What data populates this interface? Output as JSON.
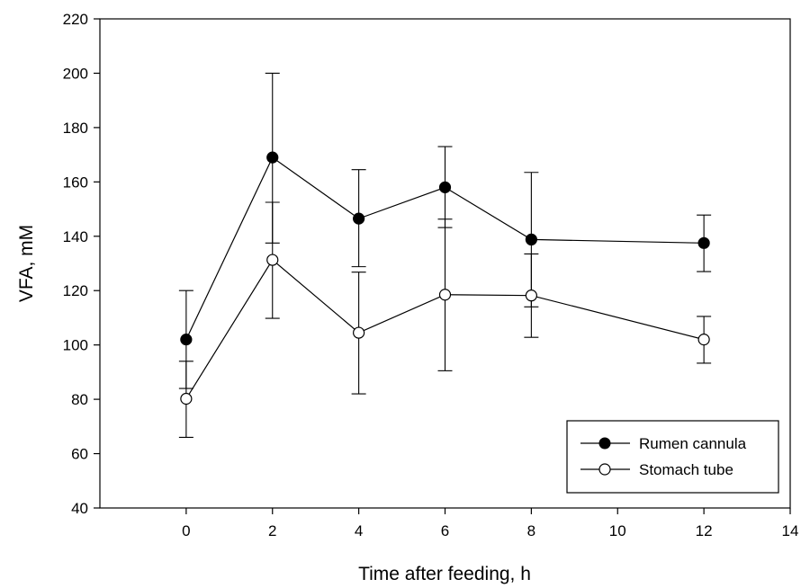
{
  "chart_data": {
    "type": "line",
    "xlabel": "Time after feeding, h",
    "ylabel": "VFA, mM",
    "xlim": [
      -2,
      14
    ],
    "ylim": [
      40,
      220
    ],
    "xticks": [
      0,
      2,
      4,
      6,
      8,
      10,
      12,
      14
    ],
    "yticks": [
      40,
      60,
      80,
      100,
      120,
      140,
      160,
      180,
      200,
      220
    ],
    "grid": false,
    "legend": "bottom-right",
    "series": [
      {
        "name": "Rumen cannula",
        "marker": "filled-circle",
        "color": "#000000",
        "x": [
          0,
          2,
          4,
          6,
          8,
          12
        ],
        "y": [
          102,
          169,
          146.5,
          158,
          138.8,
          137.5
        ],
        "err_low": [
          84,
          137.5,
          128.8,
          143.2,
          114,
          127
        ],
        "err_high": [
          120,
          200,
          164.5,
          173,
          163.5,
          147.8
        ]
      },
      {
        "name": "Stomach tube",
        "marker": "open-circle",
        "color": "#000000",
        "x": [
          0,
          2,
          4,
          6,
          8,
          12
        ],
        "y": [
          80.2,
          131.3,
          104.5,
          118.5,
          118.2,
          102
        ],
        "err_low": [
          66,
          109.8,
          82,
          90.5,
          102.8,
          93.3
        ],
        "err_high": [
          94,
          152.5,
          126.8,
          146.3,
          133.5,
          110.5
        ]
      }
    ]
  }
}
